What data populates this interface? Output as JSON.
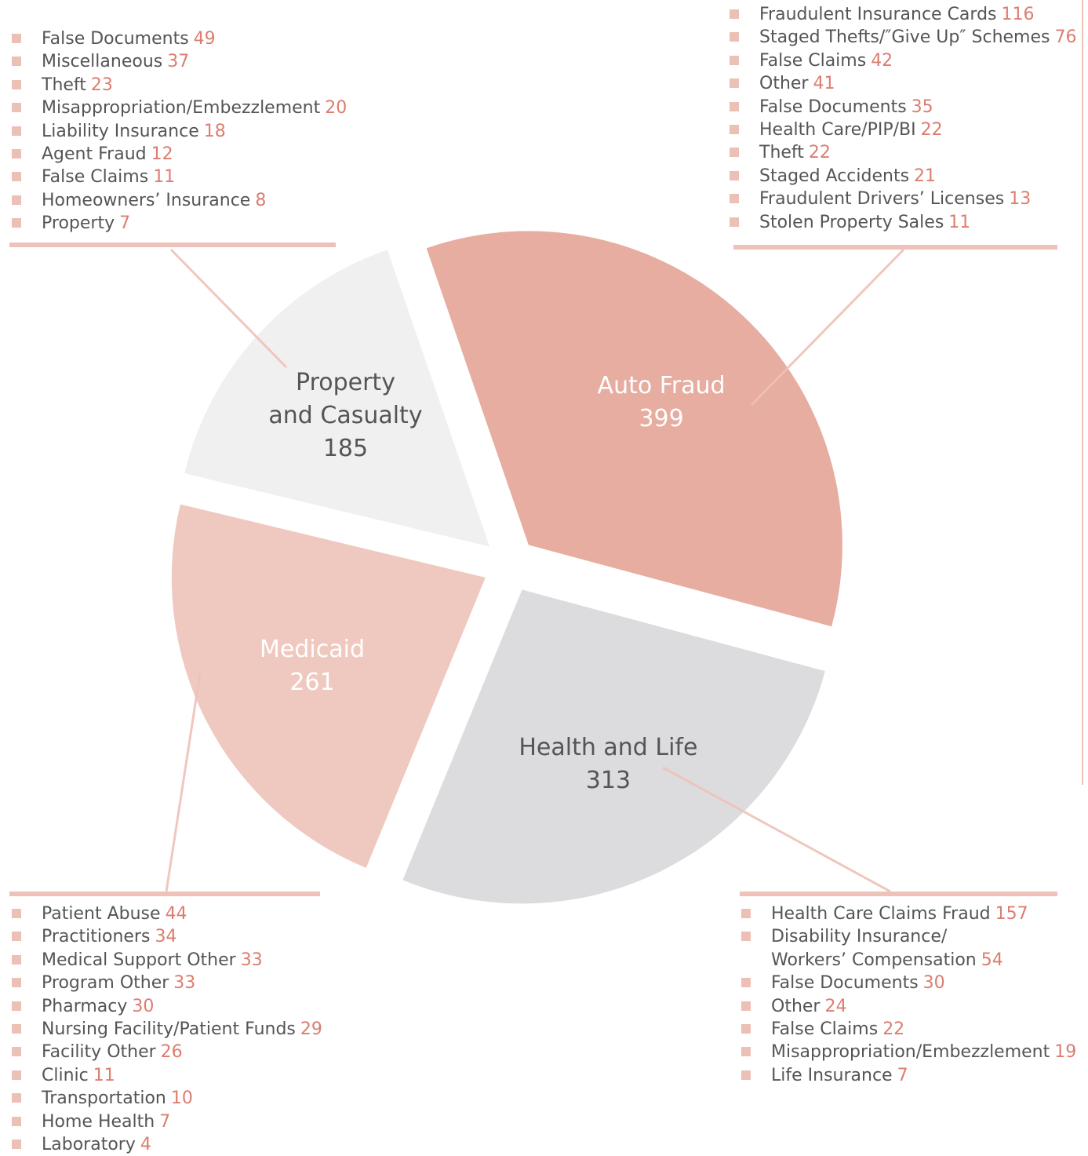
{
  "chart_data": {
    "type": "pie",
    "categories": [
      "Auto Fraud",
      "Health and Life",
      "Medicaid",
      "Property\nand Casualty"
    ],
    "values": [
      399,
      313,
      261,
      185
    ],
    "colors": [
      "#e6ada0",
      "#dcdcde",
      "#efc9bf",
      "#f0f0f0"
    ],
    "label_colors": [
      "#ffffff",
      "#555555",
      "#ffffff",
      "#555555"
    ],
    "breakdowns": [
      {
        "items": [
          {
            "label": "Fraudulent Insurance Cards",
            "value": 116
          },
          {
            "label": "Staged Thefts/″Give Up″ Schemes",
            "value": 76
          },
          {
            "label": "False Claims",
            "value": 42
          },
          {
            "label": "Other",
            "value": 41
          },
          {
            "label": "False Documents",
            "value": 35
          },
          {
            "label": "Health Care/PIP/BI",
            "value": 22
          },
          {
            "label": "Theft",
            "value": 22
          },
          {
            "label": "Staged Accidents",
            "value": 21
          },
          {
            "label": "Fraudulent Drivers’ Licenses",
            "value": 13
          },
          {
            "label": "Stolen Property Sales",
            "value": 11
          }
        ]
      },
      {
        "items": [
          {
            "label": "Health Care Claims Fraud",
            "value": 157
          },
          {
            "label": "Disability Insurance/\nWorkers’ Compensation",
            "value": 54
          },
          {
            "label": "False Documents",
            "value": 30
          },
          {
            "label": "Other",
            "value": 24
          },
          {
            "label": "False Claims",
            "value": 22
          },
          {
            "label": "Misappropriation/Embezzlement",
            "value": 19
          },
          {
            "label": "Life Insurance",
            "value": 7
          }
        ]
      },
      {
        "items": [
          {
            "label": "Patient Abuse",
            "value": 44
          },
          {
            "label": "Practitioners",
            "value": 34
          },
          {
            "label": "Medical Support Other",
            "value": 33
          },
          {
            "label": "Program Other",
            "value": 33
          },
          {
            "label": "Pharmacy",
            "value": 30
          },
          {
            "label": "Nursing Facility/Patient Funds",
            "value": 29
          },
          {
            "label": "Facility Other",
            "value": 26
          },
          {
            "label": "Clinic",
            "value": 11
          },
          {
            "label": "Transportation",
            "value": 10
          },
          {
            "label": "Home Health",
            "value": 7
          },
          {
            "label": "Laboratory",
            "value": 4
          }
        ]
      },
      {
        "items": [
          {
            "label": "False Documents",
            "value": 49
          },
          {
            "label": "Miscellaneous",
            "value": 37
          },
          {
            "label": "Theft",
            "value": 23
          },
          {
            "label": "Misappropriation/Embezzlement",
            "value": 20
          },
          {
            "label": "Liability Insurance",
            "value": 18
          },
          {
            "label": "Agent Fraud",
            "value": 12
          },
          {
            "label": "False Claims",
            "value": 11
          },
          {
            "label": "Homeowners’ Insurance",
            "value": 8
          },
          {
            "label": "Property",
            "value": 7
          }
        ]
      }
    ]
  }
}
